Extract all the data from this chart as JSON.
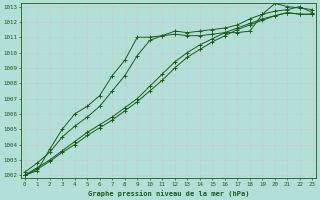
{
  "title": "Graphe pression niveau de la mer (hPa)",
  "xlabel_hours": [
    0,
    1,
    2,
    3,
    4,
    5,
    6,
    7,
    8,
    9,
    10,
    11,
    12,
    13,
    14,
    15,
    16,
    17,
    18,
    19,
    20,
    21,
    22,
    23
  ],
  "series": [
    [
      1002.2,
      1002.8,
      1003.5,
      1004.5,
      1005.2,
      1005.8,
      1006.5,
      1007.5,
      1008.5,
      1009.8,
      1010.8,
      1011.1,
      1011.4,
      1011.3,
      1011.4,
      1011.5,
      1011.6,
      1011.8,
      1012.2,
      1012.5,
      1012.7,
      1012.8,
      1013.0,
      1012.6
    ],
    [
      1002.0,
      1002.5,
      1003.0,
      1003.6,
      1004.2,
      1004.8,
      1005.3,
      1005.8,
      1006.4,
      1007.0,
      1007.8,
      1008.6,
      1009.4,
      1010.0,
      1010.5,
      1010.9,
      1011.3,
      1011.6,
      1011.9,
      1012.2,
      1012.4,
      1012.6,
      1012.5,
      1012.5
    ],
    [
      1002.0,
      1002.4,
      1002.9,
      1003.5,
      1004.0,
      1004.6,
      1005.1,
      1005.6,
      1006.2,
      1006.8,
      1007.5,
      1008.2,
      1009.0,
      1009.7,
      1010.2,
      1010.7,
      1011.1,
      1011.5,
      1011.8,
      1012.1,
      1012.4,
      1012.6,
      1012.5,
      1012.5
    ],
    [
      1002.0,
      1002.3,
      1003.7,
      1005.0,
      1006.0,
      1006.5,
      1007.2,
      1008.5,
      1009.5,
      1011.0,
      1011.0,
      1011.1,
      1011.2,
      1011.1,
      1011.1,
      1011.2,
      1011.3,
      1011.3,
      1011.4,
      1012.5,
      1013.2,
      1013.0,
      1012.9,
      1012.8
    ]
  ],
  "line_color": "#1a5c1a",
  "marker_color": "#1a5c1a",
  "bg_color": "#b2e0d8",
  "grid_color": "#d0d0d0",
  "axis_color": "#1a5c1a",
  "text_color": "#1a5c1a",
  "ylim_min": 1001.8,
  "ylim_max": 1013.2,
  "yticks": [
    1002,
    1003,
    1004,
    1005,
    1006,
    1007,
    1008,
    1009,
    1010,
    1011,
    1012,
    1013
  ]
}
